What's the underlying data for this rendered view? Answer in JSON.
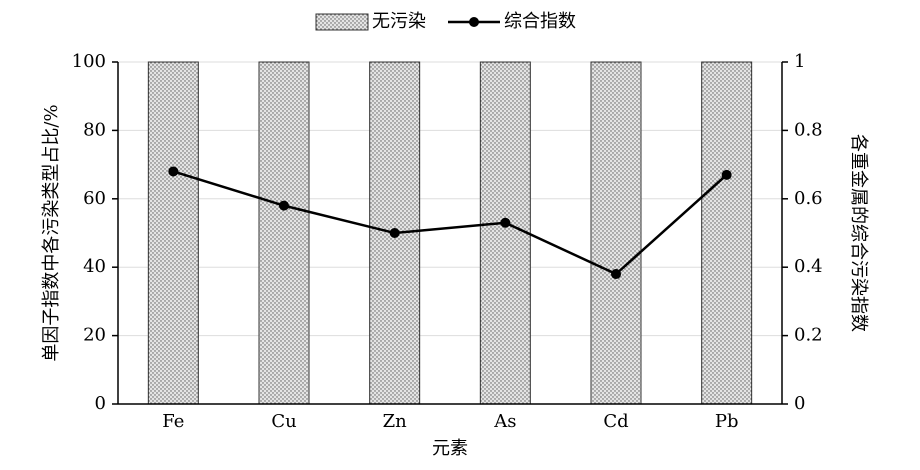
{
  "chart_data": {
    "type": "bar",
    "categories": [
      "Fe",
      "Cu",
      "Zn",
      "As",
      "Cd",
      "Pb"
    ],
    "series": [
      {
        "name": "无污染",
        "color": "#e4e4e4",
        "values": [
          100,
          100,
          100,
          100,
          100,
          100
        ]
      },
      {
        "name": "综合指数",
        "type": "line",
        "axis": "y2",
        "color": "#000000",
        "values": [
          0.68,
          0.58,
          0.5,
          0.53,
          0.38,
          0.67
        ]
      }
    ],
    "xlabel": "元素",
    "ylabel": "单因子指数中各污染类型占比/%",
    "y2label": "各重金属的综合污染指数",
    "ylim": [
      0,
      100
    ],
    "yticks": [
      0,
      20,
      40,
      60,
      80,
      100
    ],
    "y2lim": [
      0,
      1
    ],
    "y2ticks": [
      0,
      0.2,
      0.4,
      0.6,
      0.8,
      1
    ],
    "grid": true,
    "legend": "top"
  }
}
